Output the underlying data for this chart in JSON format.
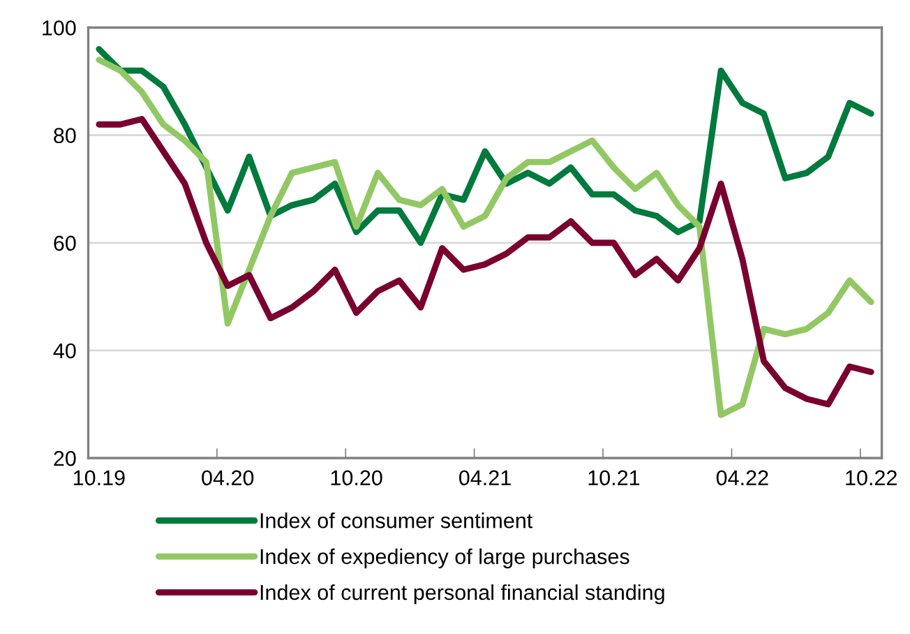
{
  "chart_data": {
    "type": "line",
    "categories": [
      "10.19",
      null,
      null,
      null,
      null,
      null,
      "04.20",
      null,
      null,
      null,
      null,
      null,
      "10.20",
      null,
      null,
      null,
      null,
      null,
      "04.21",
      null,
      null,
      null,
      null,
      null,
      "10.21",
      null,
      null,
      null,
      null,
      null,
      "04.22",
      null,
      null,
      null,
      null,
      null,
      "10.22"
    ],
    "series": [
      {
        "name": "Index of consumer sentiment",
        "color": "#007a3d",
        "values": [
          96,
          92,
          92,
          89,
          82,
          74,
          66,
          76,
          65,
          67,
          68,
          71,
          62,
          66,
          66,
          60,
          69,
          68,
          77,
          71,
          73,
          71,
          74,
          69,
          69,
          66,
          65,
          62,
          64,
          92,
          86,
          84,
          72,
          73,
          76,
          86,
          84
        ]
      },
      {
        "name": "Index of expediency of large purchases",
        "color": "#92c864",
        "values": [
          94,
          92,
          88,
          82,
          79,
          75,
          45,
          55,
          65,
          73,
          74,
          75,
          63,
          73,
          68,
          67,
          70,
          63,
          65,
          72,
          75,
          75,
          77,
          79,
          74,
          70,
          73,
          67,
          63,
          28,
          30,
          44,
          43,
          44,
          47,
          53,
          49
        ]
      },
      {
        "name": "Index of current personal financial standing",
        "color": "#7a0030",
        "values": [
          82,
          82,
          83,
          77,
          71,
          60,
          52,
          54,
          46,
          48,
          51,
          55,
          47,
          51,
          53,
          48,
          59,
          55,
          56,
          58,
          61,
          61,
          64,
          60,
          60,
          54,
          57,
          53,
          59,
          71,
          57,
          38,
          33,
          31,
          30,
          37,
          36
        ]
      }
    ],
    "ylim": [
      20,
      100
    ],
    "yticks": [
      20,
      40,
      60,
      80,
      100
    ],
    "grid": "y",
    "legend": "bottom",
    "marker": "none",
    "line_style": "solid"
  }
}
